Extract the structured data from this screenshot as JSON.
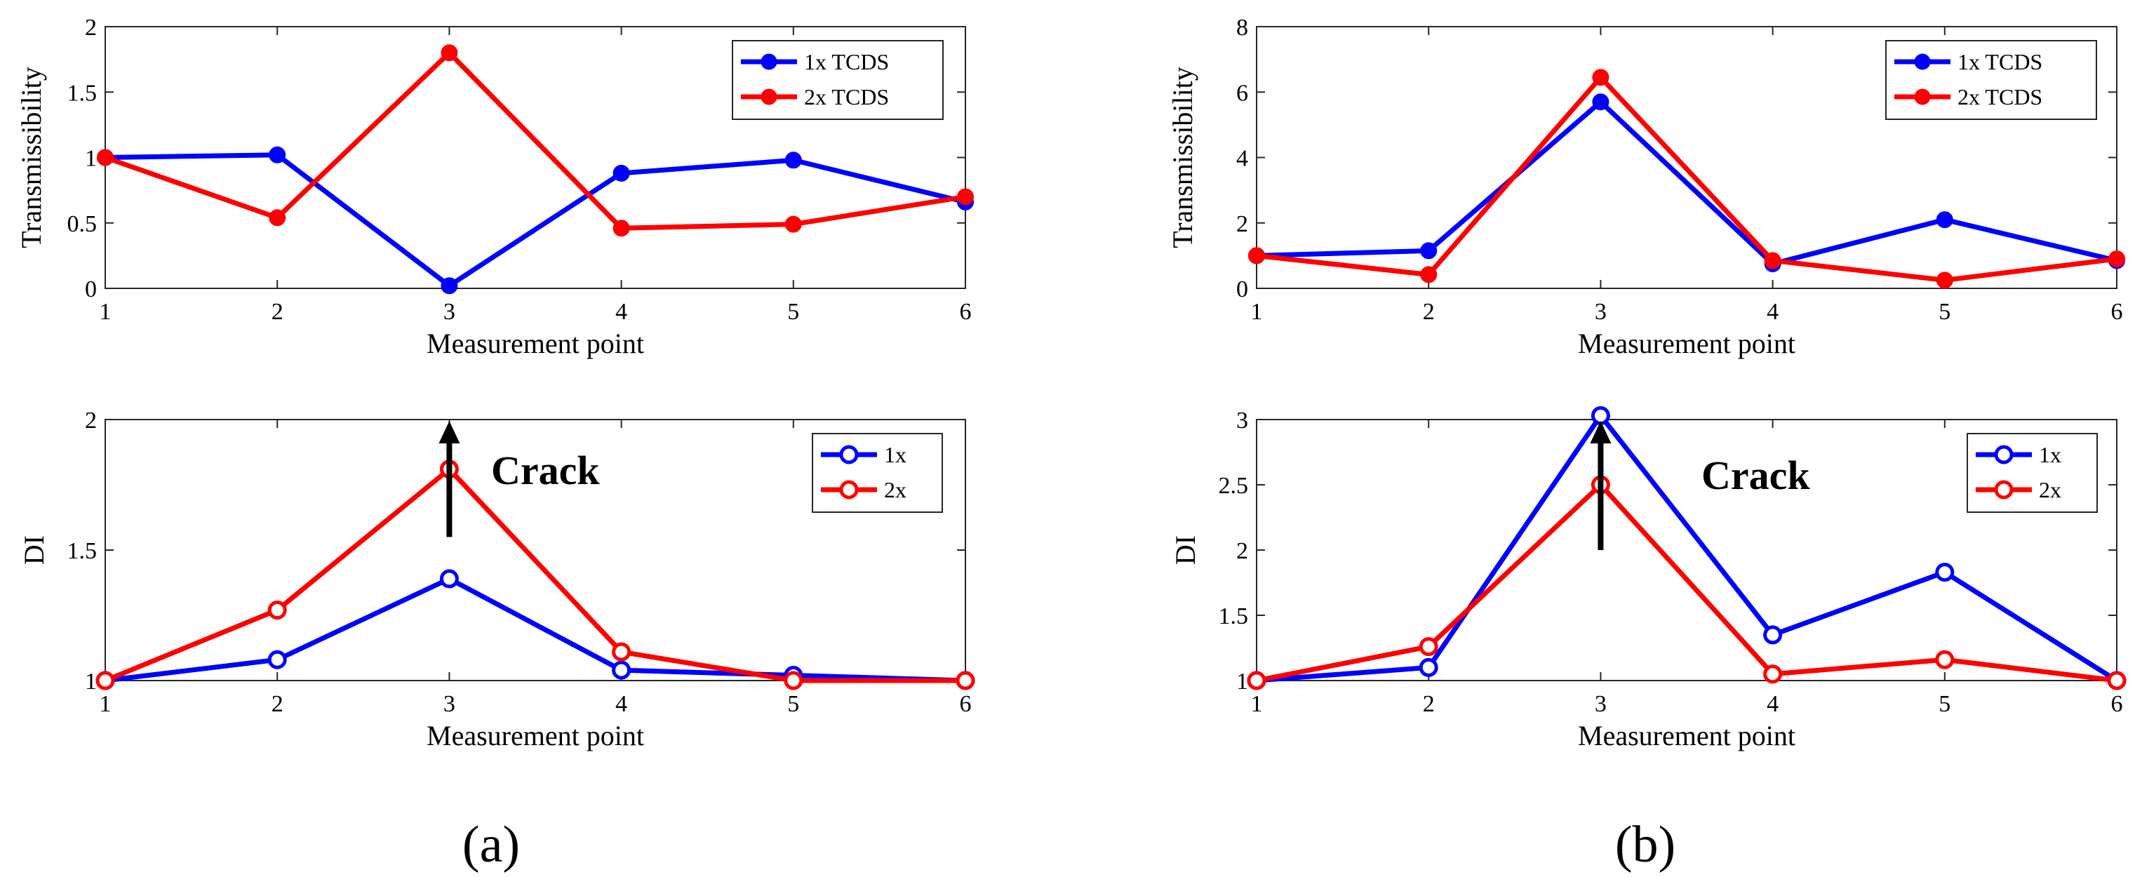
{
  "panels": {
    "a": {
      "label": "(a)"
    },
    "b": {
      "label": "(b)"
    }
  },
  "chart_data": [
    {
      "id": "a-top",
      "type": "line",
      "panel": "(a)",
      "xlabel": "Measurement point",
      "ylabel": "Transmissibility",
      "xlim": [
        1,
        6
      ],
      "ylim": [
        0,
        2
      ],
      "xticks": [
        "1",
        "2",
        "3",
        "4",
        "5",
        "6"
      ],
      "yticks": [
        {
          "v": 0,
          "t": "0"
        },
        {
          "v": 0.5,
          "t": "0.5"
        },
        {
          "v": 1,
          "t": "1"
        },
        {
          "v": 1.5,
          "t": "1.5"
        },
        {
          "v": 2,
          "t": "2"
        }
      ],
      "marker": "filled",
      "legend_position": "top-right",
      "x": [
        1,
        2,
        3,
        4,
        5,
        6
      ],
      "series": [
        {
          "name": "1x TCDS",
          "color": "#0000ff",
          "values": [
            1.0,
            1.02,
            0.02,
            0.88,
            0.98,
            0.66
          ]
        },
        {
          "name": "2x TCDS",
          "color": "#ff0000",
          "values": [
            1.0,
            0.54,
            1.8,
            0.46,
            0.49,
            0.7
          ]
        }
      ]
    },
    {
      "id": "a-bottom",
      "type": "line",
      "panel": "(a)",
      "xlabel": "Measurement point",
      "ylabel": "DI",
      "xlim": [
        1,
        6
      ],
      "ylim": [
        1,
        2
      ],
      "xticks": [
        "1",
        "2",
        "3",
        "4",
        "5",
        "6"
      ],
      "yticks": [
        {
          "v": 1,
          "t": "1"
        },
        {
          "v": 1.5,
          "t": "1.5"
        },
        {
          "v": 2,
          "t": "2"
        }
      ],
      "marker": "open",
      "legend_position": "top-right",
      "x": [
        1,
        2,
        3,
        4,
        5,
        6
      ],
      "series": [
        {
          "name": "1x",
          "color": "#0000ff",
          "values": [
            1.0,
            1.08,
            1.39,
            1.04,
            1.02,
            1.0
          ]
        },
        {
          "name": "2x",
          "color": "#ff0000",
          "values": [
            1.0,
            1.27,
            1.81,
            1.11,
            1.0,
            1.0
          ]
        }
      ],
      "annotation": {
        "text": "Crack",
        "arrow_x": 3,
        "arrow_from": 1.55,
        "arrow_to": 2.0
      }
    },
    {
      "id": "b-top",
      "type": "line",
      "panel": "(b)",
      "xlabel": "Measurement point",
      "ylabel": "Transmissibility",
      "xlim": [
        1,
        6
      ],
      "ylim": [
        0,
        8
      ],
      "xticks": [
        "1",
        "2",
        "3",
        "4",
        "5",
        "6"
      ],
      "yticks": [
        {
          "v": 0,
          "t": "0"
        },
        {
          "v": 2,
          "t": "2"
        },
        {
          "v": 4,
          "t": "4"
        },
        {
          "v": 6,
          "t": "6"
        },
        {
          "v": 8,
          "t": "8"
        }
      ],
      "marker": "filled",
      "legend_position": "top-right",
      "x": [
        1,
        2,
        3,
        4,
        5,
        6
      ],
      "series": [
        {
          "name": "1x TCDS",
          "color": "#0000ff",
          "values": [
            1.0,
            1.15,
            5.7,
            0.75,
            2.1,
            0.85
          ]
        },
        {
          "name": "2x TCDS",
          "color": "#ff0000",
          "values": [
            1.0,
            0.42,
            6.45,
            0.85,
            0.25,
            0.9
          ]
        }
      ]
    },
    {
      "id": "b-bottom",
      "type": "line",
      "panel": "(b)",
      "xlabel": "Measurement point",
      "ylabel": "DI",
      "xlim": [
        1,
        6
      ],
      "ylim": [
        1,
        3
      ],
      "xticks": [
        "1",
        "2",
        "3",
        "4",
        "5",
        "6"
      ],
      "yticks": [
        {
          "v": 1,
          "t": "1"
        },
        {
          "v": 1.5,
          "t": "1.5"
        },
        {
          "v": 2,
          "t": "2"
        },
        {
          "v": 2.5,
          "t": "2.5"
        },
        {
          "v": 3,
          "t": "3"
        }
      ],
      "marker": "open",
      "legend_position": "top-right",
      "x": [
        1,
        2,
        3,
        4,
        5,
        6
      ],
      "series": [
        {
          "name": "1x",
          "color": "#0000ff",
          "values": [
            1.0,
            1.1,
            3.03,
            1.35,
            1.83,
            1.0
          ]
        },
        {
          "name": "2x",
          "color": "#ff0000",
          "values": [
            1.0,
            1.26,
            2.5,
            1.05,
            1.16,
            1.0
          ]
        }
      ],
      "annotation": {
        "text": "Crack",
        "arrow_x": 3,
        "arrow_from": 2.0,
        "arrow_to": 3.0
      }
    }
  ]
}
